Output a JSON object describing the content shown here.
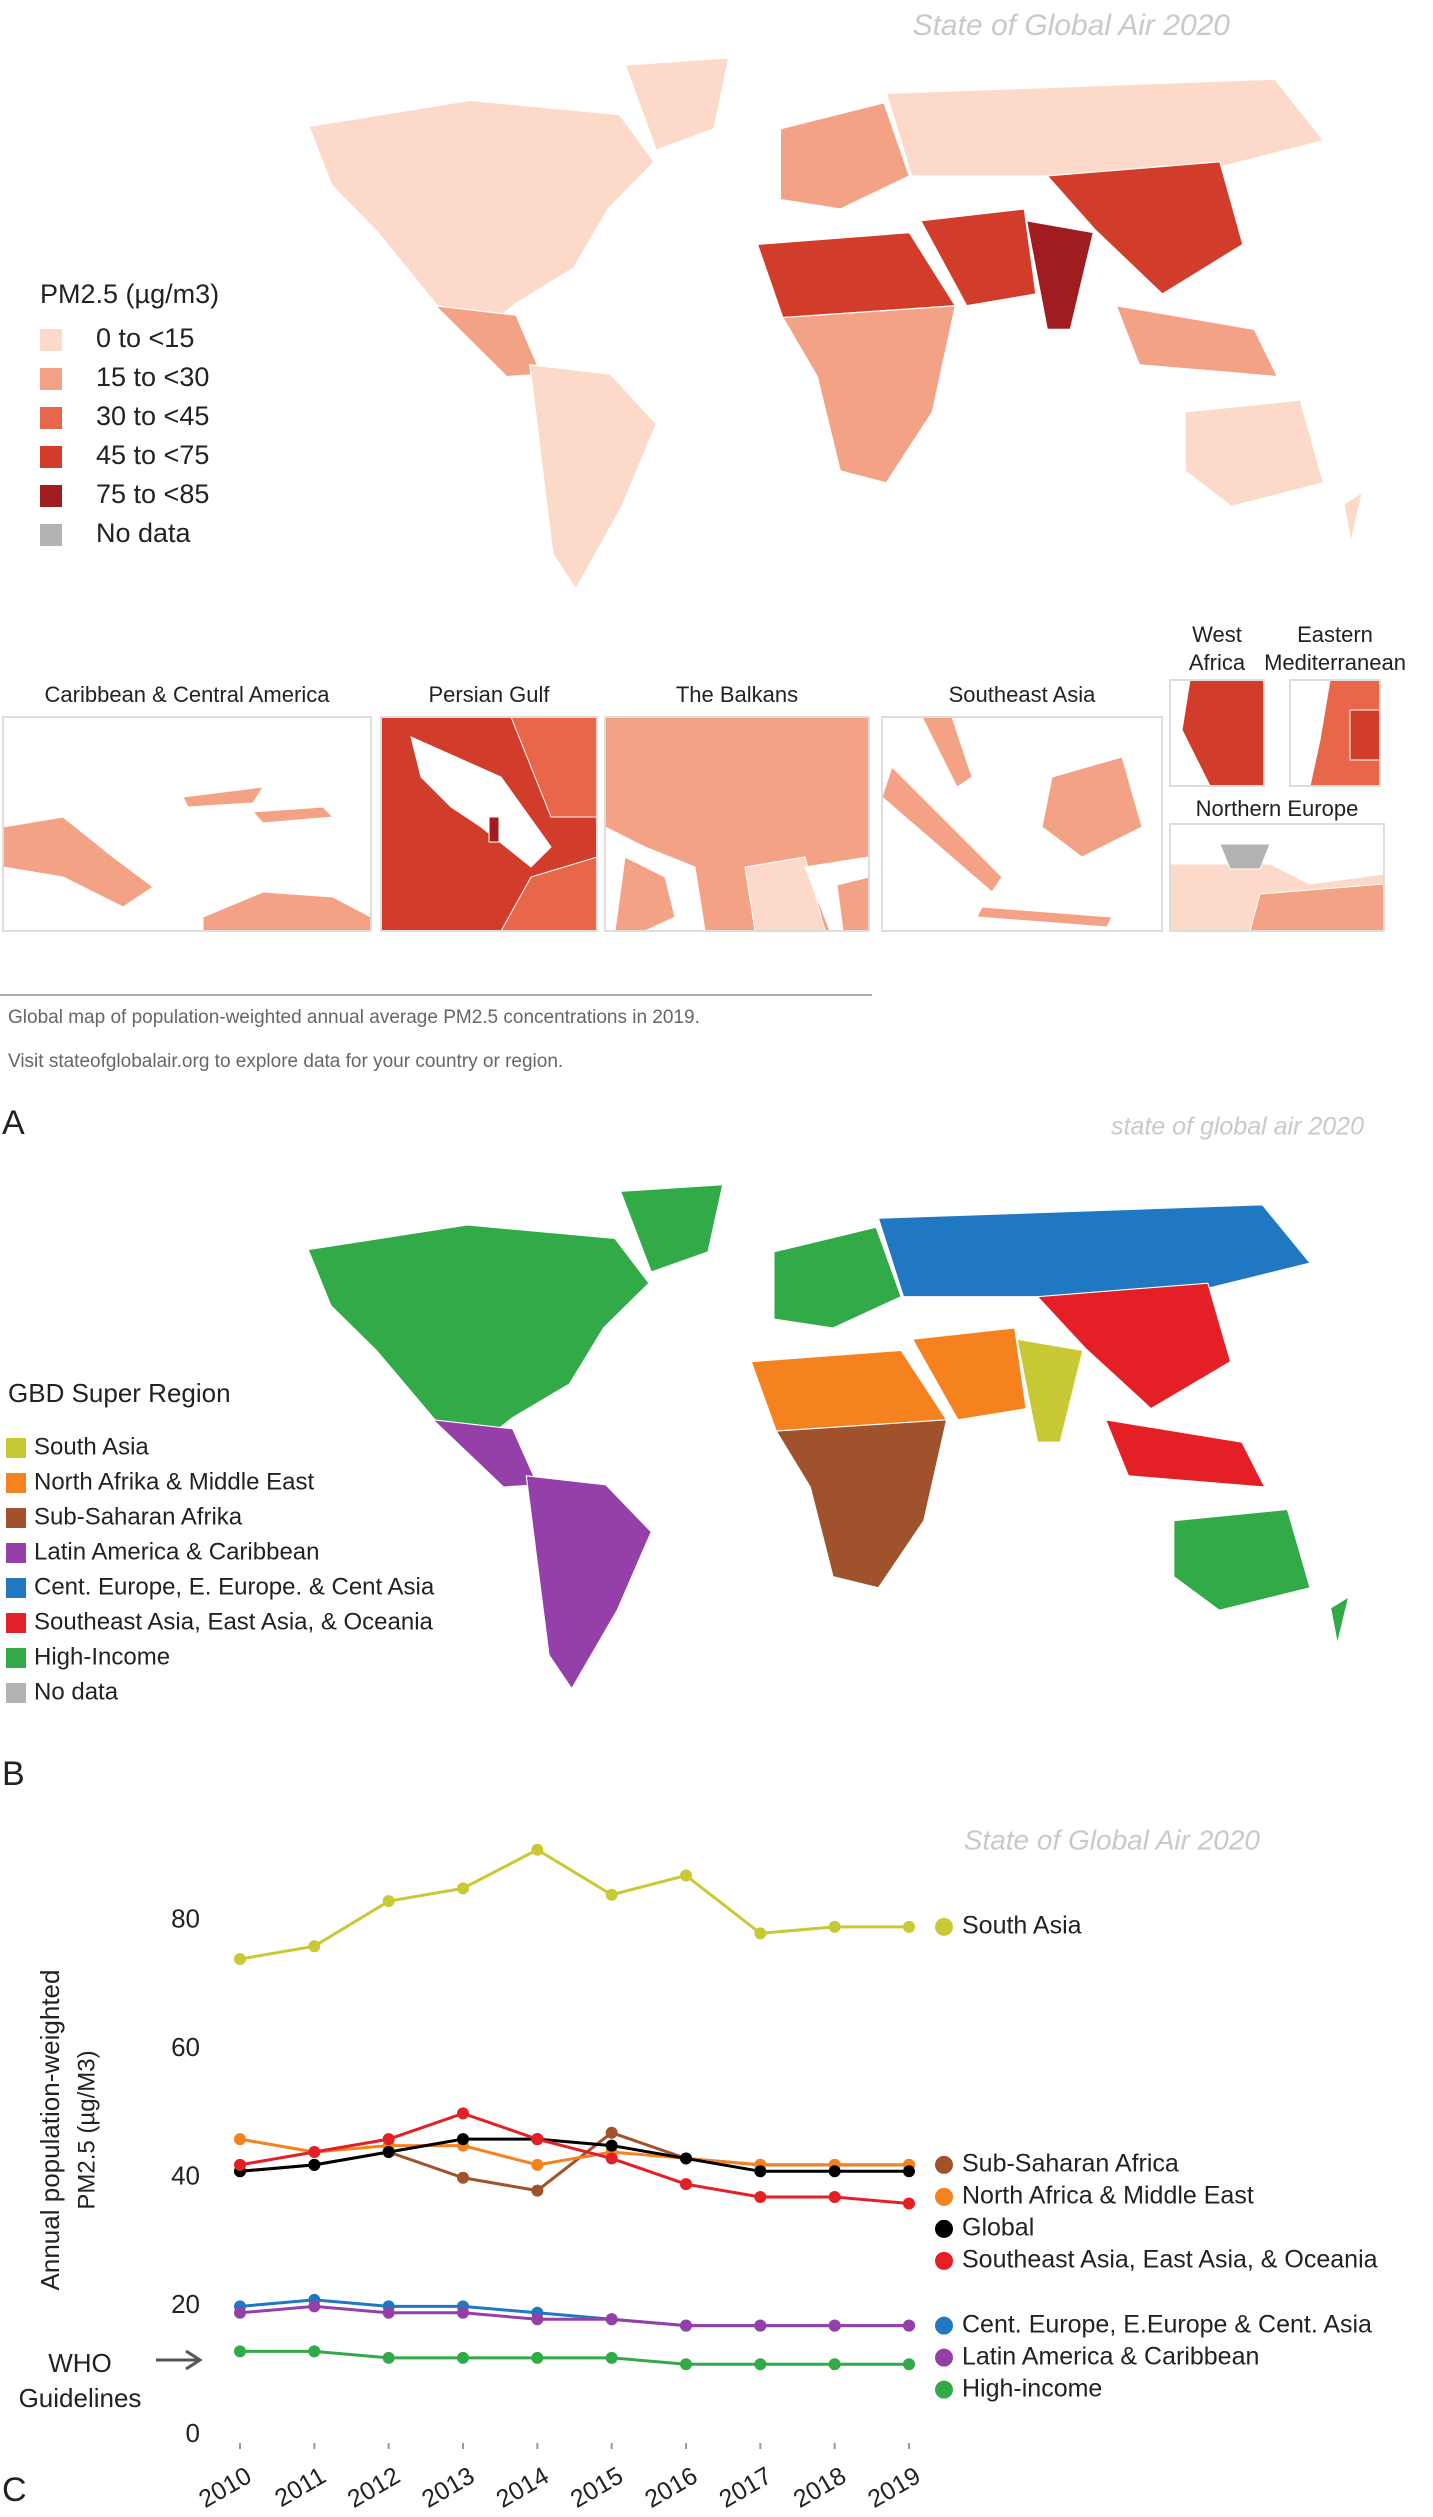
{
  "panel_a": {
    "label": "A",
    "watermark": "State of Global Air 2020",
    "legend_title": "PM2.5 (µg/m3)",
    "legend": [
      {
        "label": "0 to <15",
        "color": "#fcd9c8"
      },
      {
        "label": "15 to <30",
        "color": "#f4a286"
      },
      {
        "label": "30 to <45",
        "color": "#e8664a"
      },
      {
        "label": "45 to <75",
        "color": "#d23c2a"
      },
      {
        "label": "75 to <85",
        "color": "#a01c1e"
      },
      {
        "label": "No data",
        "color": "#b3b3b3"
      }
    ],
    "insets": [
      {
        "title": [
          "Caribbean & Central America"
        ]
      },
      {
        "title": [
          "Persian Gulf"
        ]
      },
      {
        "title": [
          "The Balkans"
        ]
      },
      {
        "title": [
          "Southeast Asia"
        ]
      },
      {
        "title": [
          "West",
          "Africa"
        ]
      },
      {
        "title": [
          "Eastern",
          "Mediterranean"
        ]
      },
      {
        "title": [
          "Northern Europe"
        ]
      }
    ],
    "caption": [
      "Global map of population-weighted annual average PM2.5 concentrations in 2019.",
      "Visit stateofglobalair.org to explore data for your country or region."
    ]
  },
  "panel_b": {
    "label": "B",
    "watermark": "state of global air 2020",
    "legend_title": "GBD Super Region",
    "legend": [
      {
        "label": "South Asia",
        "color": "#c9c935"
      },
      {
        "label": "North Afrika & Middle East",
        "color": "#f5821f"
      },
      {
        "label": "Sub-Saharan Afrika",
        "color": "#a0522d"
      },
      {
        "label": "Latin America & Caribbean",
        "color": "#9440a8"
      },
      {
        "label": "Cent. Europe, E. Europe. & Cent Asia",
        "color": "#1f78c1"
      },
      {
        "label": "Southeast Asia, East Asia, & Oceania",
        "color": "#e41f26"
      },
      {
        "label": "High-Income",
        "color": "#33aa48"
      },
      {
        "label": "No data",
        "color": "#b3b3b3"
      }
    ]
  },
  "chart_data": {
    "type": "line",
    "label": "C",
    "watermark": "State of Global Air 2020",
    "y_label": [
      "Annual population-weighted",
      "PM2.5 (µg/M3)"
    ],
    "annotation": [
      "WHO",
      "Guidelines"
    ],
    "x": [
      2010,
      2011,
      2012,
      2013,
      2014,
      2015,
      2016,
      2017,
      2018,
      2019
    ],
    "xlim": [
      2010,
      2019
    ],
    "ylim": [
      0,
      95
    ],
    "yticks": [
      0,
      20,
      40,
      60,
      80
    ],
    "series": [
      {
        "name": "South Asia",
        "color": "#c9c935",
        "values": [
          74,
          76,
          83,
          85,
          91,
          84,
          87,
          78,
          79,
          79
        ]
      },
      {
        "name": "Sub-Saharan Africa",
        "color": "#a0522d",
        "values": [
          41,
          42,
          44,
          40,
          38,
          47,
          43,
          42,
          42,
          42
        ]
      },
      {
        "name": "North Africa & Middle East",
        "color": "#f5821f",
        "values": [
          46,
          44,
          45,
          45,
          42,
          44,
          43,
          42,
          42,
          42
        ]
      },
      {
        "name": "Global",
        "color": "#000000",
        "values": [
          41,
          42,
          44,
          46,
          46,
          45,
          43,
          41,
          41,
          41
        ]
      },
      {
        "name": "Southeast Asia, East Asia, & Oceania",
        "color": "#e41f26",
        "values": [
          42,
          44,
          46,
          50,
          46,
          43,
          39,
          37,
          37,
          36
        ]
      },
      {
        "name": "Cent. Europe, E.Europe & Cent. Asia",
        "color": "#1f78c1",
        "values": [
          20,
          21,
          20,
          20,
          19,
          18,
          17,
          17,
          17,
          17
        ]
      },
      {
        "name": "Latin America & Caribbean",
        "color": "#9440a8",
        "values": [
          19,
          20,
          19,
          19,
          18,
          18,
          17,
          17,
          17,
          17
        ]
      },
      {
        "name": "High-income",
        "color": "#33aa48",
        "values": [
          13,
          13,
          12,
          12,
          12,
          12,
          11,
          11,
          11,
          11
        ]
      }
    ]
  }
}
